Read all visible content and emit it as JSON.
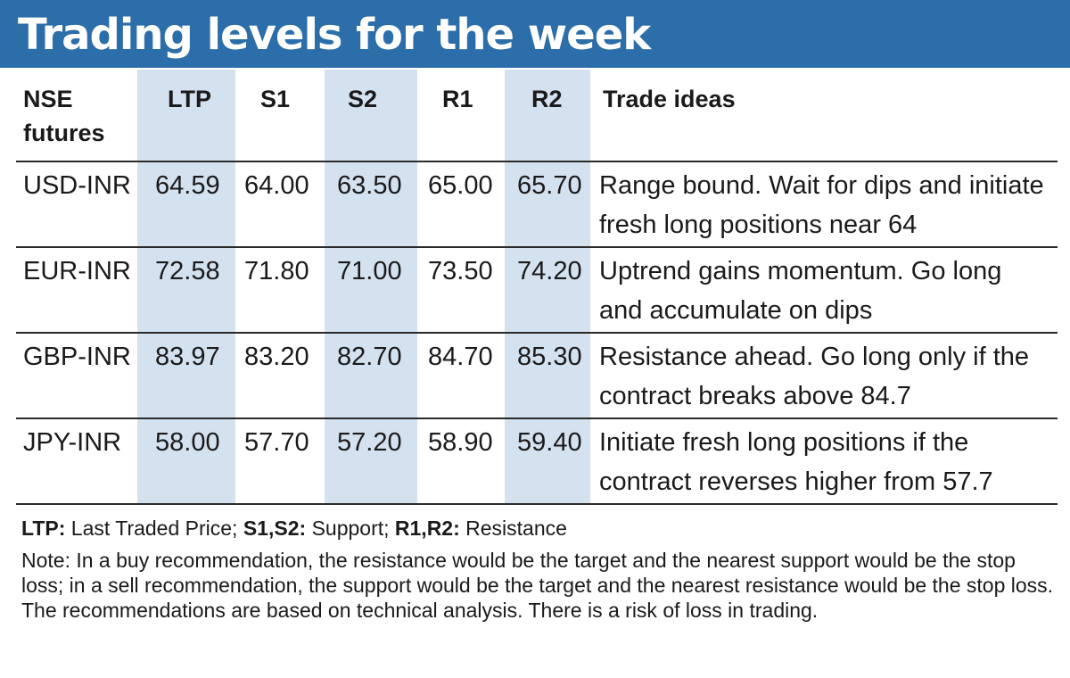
{
  "title": "Trading levels for the week",
  "columns": [
    "NSE futures",
    "LTP",
    "S1",
    "S2",
    "R1",
    "R2",
    "Trade ideas"
  ],
  "rows": [
    {
      "name": "USD-INR",
      "ltp": "64.59",
      "s1": "64.00",
      "s2": "63.50",
      "r1": "65.00",
      "r2": "65.70",
      "idea": "Range bound. Wait for dips and initiate fresh long positions near 64"
    },
    {
      "name": "EUR-INR",
      "ltp": "72.58",
      "s1": "71.80",
      "s2": "71.00",
      "r1": "73.50",
      "r2": "74.20",
      "idea": "Uptrend gains momentum. Go long and accumulate on dips"
    },
    {
      "name": "GBP-INR",
      "ltp": "83.97",
      "s1": "83.20",
      "s2": "82.70",
      "r1": "84.70",
      "r2": "85.30",
      "idea": "Resistance ahead. Go long only if the contract breaks above 84.7"
    },
    {
      "name": "JPY-INR",
      "ltp": "58.00",
      "s1": "57.70",
      "s2": "57.20",
      "r1": "58.90",
      "r2": "59.40",
      "idea": "Initiate fresh long positions if the contract reverses higher from 57.7"
    }
  ],
  "legend": {
    "ltp_key": "LTP:",
    "ltp_text": "Last Traded Price;",
    "s_key": "S1,S2:",
    "s_text": "Support;",
    "r_key": "R1,R2:",
    "r_text": "Resistance"
  },
  "note": "Note: In a buy recommendation, the resistance would be the target and the nearest support would be the stop loss; in a sell recommendation, the support would be the target and the nearest resistance would be the stop loss. The recommendations are based on technical analysis. There is a risk of loss in trading.",
  "colors": {
    "header_bg": "#2c6ea9",
    "shade": "#d4e1ef"
  }
}
